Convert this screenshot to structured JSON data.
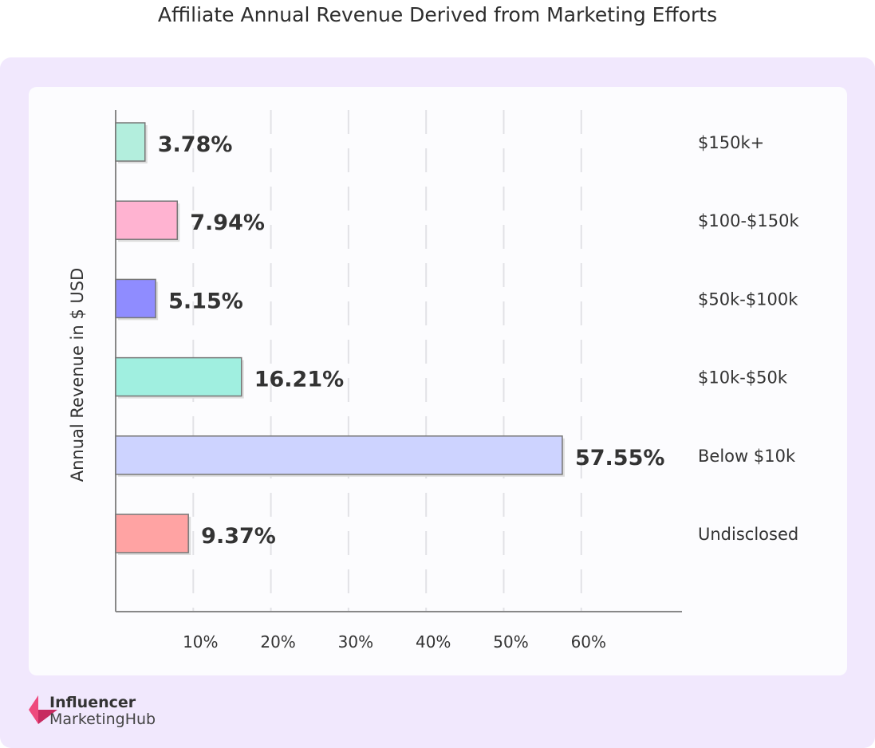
{
  "chart_data": {
    "type": "bar",
    "orientation": "horizontal",
    "title": "Affiliate Annual Revenue Derived from Marketing Efforts",
    "ylabel": "Annual Revenue in $ USD",
    "xlabel": "",
    "categories": [
      "$150k+",
      "$100-$150k",
      "$50k-$100k",
      "$10k-$50k",
      "Below $10k",
      "Undisclosed"
    ],
    "values": [
      3.78,
      7.94,
      5.15,
      16.21,
      57.55,
      9.37
    ],
    "data_labels": [
      "3.78%",
      "7.94%",
      "5.15%",
      "16.21%",
      "57.55%",
      "9.37%"
    ],
    "colors": [
      "#b3eedd",
      "#ffb3d1",
      "#8f8cff",
      "#a0efe0",
      "#cdd3ff",
      "#ffa3a3"
    ],
    "xticks": [
      10,
      20,
      30,
      40,
      50,
      60
    ],
    "xtick_labels": [
      "10%",
      "20%",
      "30%",
      "40%",
      "50%",
      "60%"
    ],
    "xlim": [
      0,
      73
    ],
    "grid": true
  },
  "brand": {
    "line1": "Influencer",
    "line2": "MarketingHub",
    "color": "#e8336f"
  }
}
